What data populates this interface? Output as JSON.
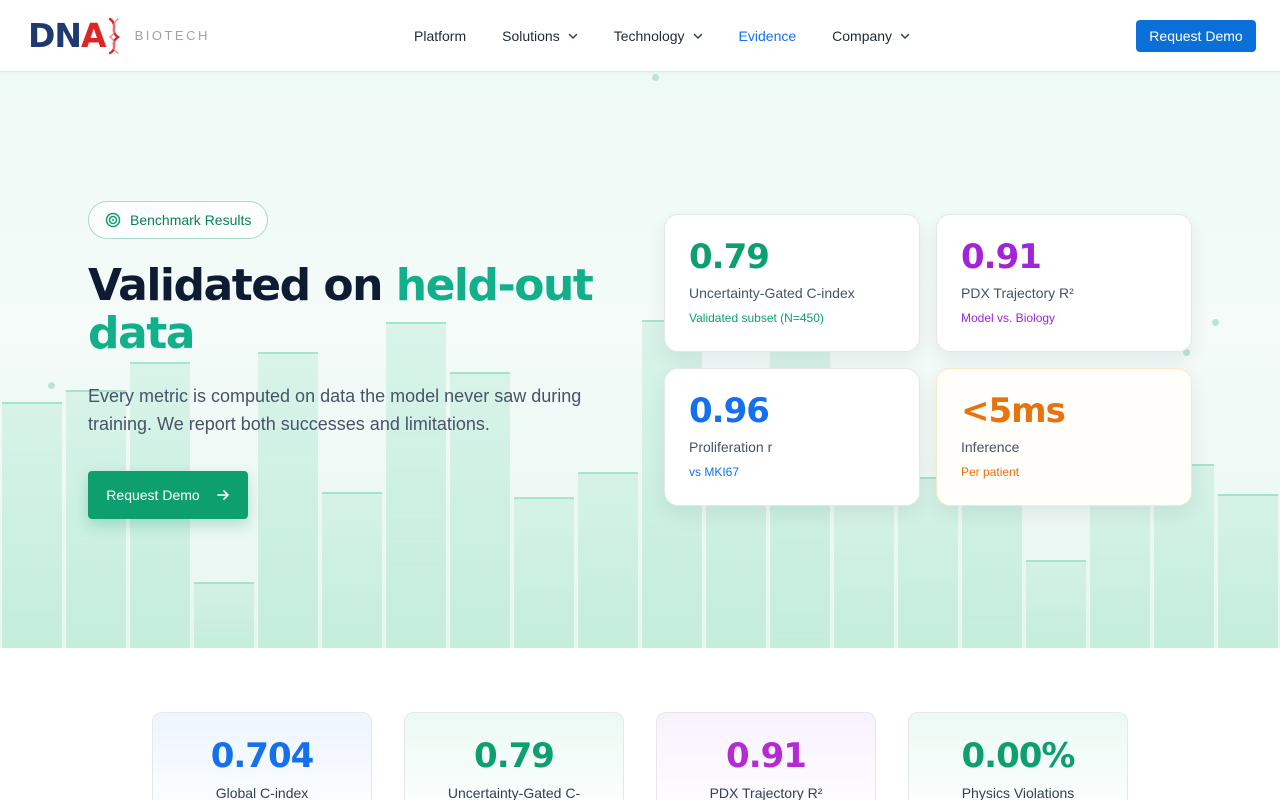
{
  "nav": {
    "logo_dn": "DN",
    "logo_a": "A",
    "logo_sub": "BIOTECH",
    "items": [
      {
        "label": "Platform",
        "dropdown": false,
        "active": false
      },
      {
        "label": "Solutions",
        "dropdown": true,
        "active": false
      },
      {
        "label": "Technology",
        "dropdown": true,
        "active": false
      },
      {
        "label": "Evidence",
        "dropdown": false,
        "active": true
      },
      {
        "label": "Company",
        "dropdown": true,
        "active": false
      }
    ],
    "cta": "Request Demo"
  },
  "hero": {
    "badge": "Benchmark Results",
    "title_main": "Validated on ",
    "title_accent": "held-out data",
    "description": "Every metric is computed on data the model never saw during training. We report both successes and limitations.",
    "cta": "Request Demo",
    "metrics": [
      {
        "value": "0.79",
        "label": "Uncertainty-Gated C-index",
        "sub": "Validated subset (N=450)",
        "color": "#0e9f6e"
      },
      {
        "value": "0.91",
        "label": "PDX Trajectory R²",
        "sub": "Model vs. Biology",
        "color": "#a323d9"
      },
      {
        "value": "0.96",
        "label": "Proliferation r",
        "sub": "vs MKI67",
        "color": "#1570ef"
      },
      {
        "value": "<5ms",
        "label": "Inference",
        "sub": "Per patient",
        "color": "#e8720c"
      }
    ]
  },
  "stats": [
    {
      "value": "0.704",
      "label": "Global C-index",
      "color": "#1570ef"
    },
    {
      "value": "0.79",
      "label": "Uncertainty-Gated C-",
      "color": "#0e9f6e"
    },
    {
      "value": "0.91",
      "label": "PDX Trajectory R²",
      "color": "#b42bd6"
    },
    {
      "value": "0.00%",
      "label": "Physics Violations",
      "color": "#0e9f6e"
    }
  ],
  "colors": {
    "brand_navy": "#1e3a6e",
    "brand_red": "#dc2626",
    "primary_blue": "#0b6fd8",
    "accent_green": "#12b08a",
    "cta_green": "#0e9f6e"
  },
  "icons": [
    "chevron-down-icon",
    "target-icon",
    "arrow-right-icon",
    "dna-helix-icon"
  ]
}
